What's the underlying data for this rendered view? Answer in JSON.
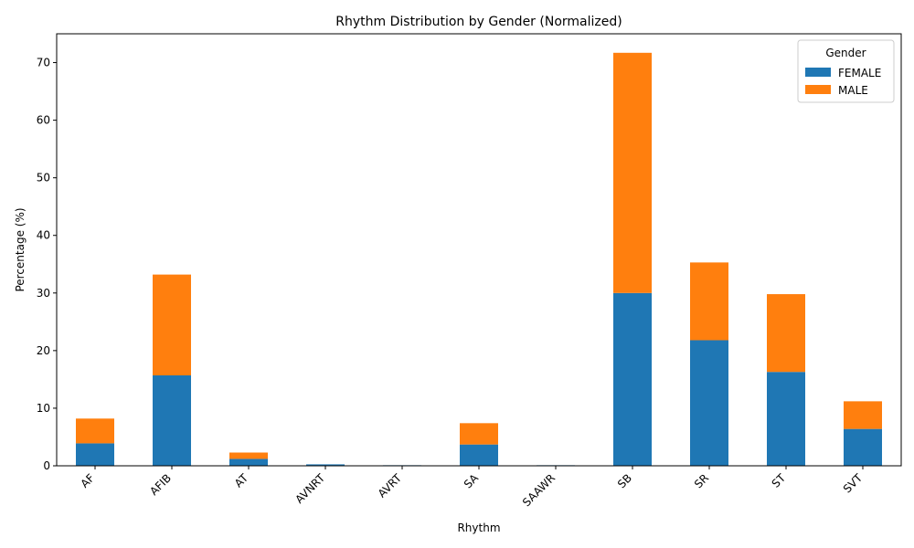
{
  "chart_data": {
    "type": "bar",
    "stacked": true,
    "title": "Rhythm Distribution by Gender (Normalized)",
    "xlabel": "Rhythm",
    "ylabel": "Percentage (%)",
    "ylim": [
      0,
      75
    ],
    "yticks": [
      0,
      10,
      20,
      30,
      40,
      50,
      60,
      70
    ],
    "categories": [
      "AF",
      "AFIB",
      "AT",
      "AVNRT",
      "AVRT",
      "SA",
      "SAAWR",
      "SB",
      "SR",
      "ST",
      "SVT"
    ],
    "series": [
      {
        "name": "FEMALE",
        "color": "#1f77b4",
        "values": [
          3.9,
          15.7,
          1.2,
          0.25,
          0.1,
          3.7,
          0.1,
          30.0,
          21.8,
          16.3,
          6.4
        ]
      },
      {
        "name": "MALE",
        "color": "#ff7f0e",
        "values": [
          4.3,
          17.5,
          1.1,
          0.0,
          0.0,
          3.7,
          0.0,
          41.7,
          13.5,
          13.5,
          4.8
        ]
      }
    ],
    "legend": {
      "title": "Gender",
      "position": "top-right"
    },
    "grid": false
  }
}
